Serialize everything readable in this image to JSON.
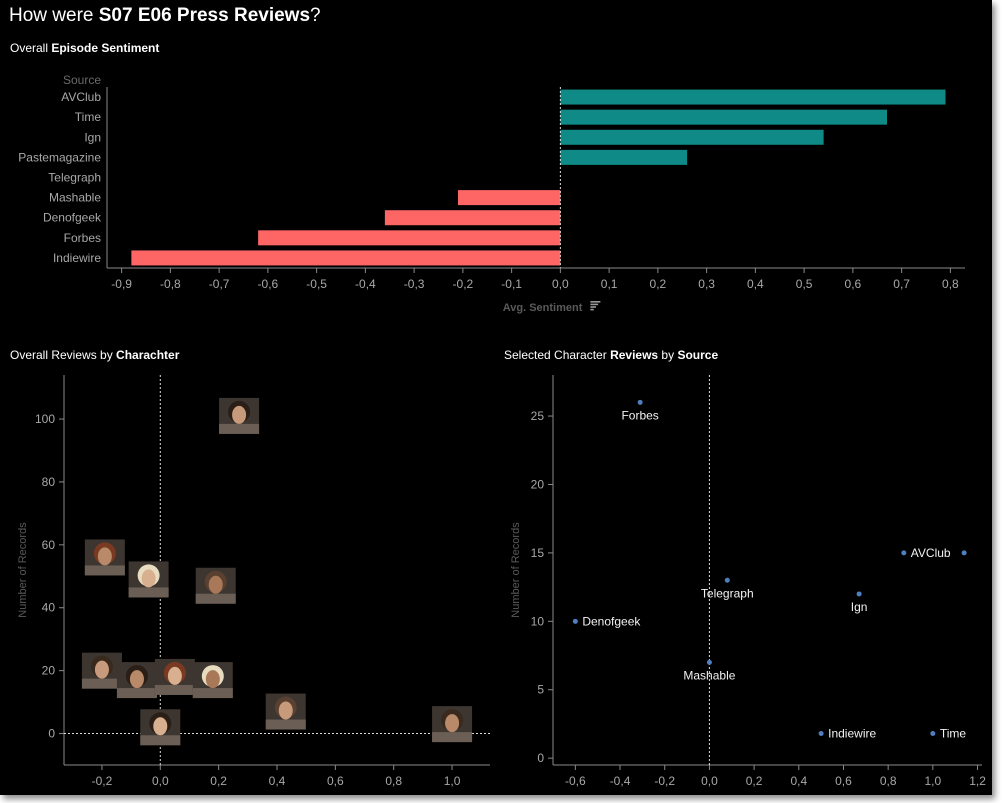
{
  "title": {
    "prefix": "How were ",
    "bold": "S07 E06 Press Reviews",
    "suffix": "?"
  },
  "colors": {
    "positive": "#0f8a87",
    "negative": "#fe6666",
    "axis": "#8a8a8a",
    "label": "#a8a8a8",
    "point": "#4f7fbf"
  },
  "chart_data": [
    {
      "type": "bar",
      "title_plain": "Overall ",
      "title_bold": "Episode Sentiment",
      "ylabel": "Source",
      "xlabel": "Avg. Sentiment",
      "categories": [
        "AVClub",
        "Time",
        "Ign",
        "Pastemagazine",
        "Telegraph",
        "Mashable",
        "Denofgeek",
        "Forbes",
        "Indiewire"
      ],
      "values": [
        0.79,
        0.67,
        0.54,
        0.26,
        0.0,
        -0.21,
        -0.36,
        -0.62,
        -0.88
      ],
      "xlim": [
        -0.93,
        0.83
      ],
      "xticks": [
        -0.9,
        -0.8,
        -0.7,
        -0.6,
        -0.5,
        -0.4,
        -0.3,
        -0.2,
        -0.1,
        0.0,
        0.1,
        0.2,
        0.3,
        0.4,
        0.5,
        0.6,
        0.7,
        0.8
      ],
      "xtick_labels": [
        "-0,9",
        "-0,8",
        "-0,7",
        "-0,6",
        "-0,5",
        "-0,4",
        "-0,3",
        "-0,2",
        "-0,1",
        "0,0",
        "0,1",
        "0,2",
        "0,3",
        "0,4",
        "0,5",
        "0,6",
        "0,7",
        "0,8"
      ]
    },
    {
      "type": "scatter",
      "title_plain": "Overall Reviews by ",
      "title_bold": "Charachter",
      "ylabel": "Number of Records",
      "xlim": [
        -0.33,
        1.13
      ],
      "ylim": [
        -10,
        114
      ],
      "xticks": [
        -0.2,
        0.0,
        0.2,
        0.4,
        0.6,
        0.8,
        1.0
      ],
      "xtick_labels": [
        "-0,2",
        "0,0",
        "0,2",
        "0,4",
        "0,6",
        "0,8",
        "1,0"
      ],
      "yticks": [
        0,
        20,
        40,
        60,
        80,
        100
      ],
      "ytick_labels": [
        "0",
        "20",
        "40",
        "60",
        "80",
        "100"
      ],
      "points": [
        {
          "x": 0.27,
          "y": 101,
          "icon": "portrait-icon"
        },
        {
          "x": -0.19,
          "y": 56,
          "icon": "portrait-icon"
        },
        {
          "x": -0.04,
          "y": 49,
          "icon": "portrait-icon"
        },
        {
          "x": 0.19,
          "y": 47,
          "icon": "portrait-icon"
        },
        {
          "x": -0.2,
          "y": 20,
          "icon": "portrait-icon"
        },
        {
          "x": -0.08,
          "y": 17,
          "icon": "portrait-icon"
        },
        {
          "x": 0.05,
          "y": 18,
          "icon": "portrait-icon"
        },
        {
          "x": 0.18,
          "y": 17,
          "icon": "portrait-icon"
        },
        {
          "x": 0.43,
          "y": 7,
          "icon": "portrait-icon"
        },
        {
          "x": 1.0,
          "y": 3,
          "icon": "portrait-icon"
        },
        {
          "x": 0.0,
          "y": 2,
          "icon": "portrait-icon"
        }
      ]
    },
    {
      "type": "scatter",
      "title_plain1": "Selected Character ",
      "title_bold1": "Reviews",
      "title_plain2": " by ",
      "title_bold2": "Source",
      "ylabel": "Number of Records",
      "xlim": [
        -0.7,
        1.22
      ],
      "ylim": [
        -0.5,
        28
      ],
      "xticks": [
        -0.6,
        -0.4,
        -0.2,
        0.0,
        0.2,
        0.4,
        0.6,
        0.8,
        1.0,
        1.2
      ],
      "xtick_labels": [
        "-0,6",
        "-0,4",
        "-0,2",
        "0,0",
        "0,2",
        "0,4",
        "0,6",
        "0,8",
        "1,0",
        "1,2"
      ],
      "yticks": [
        0,
        5,
        10,
        15,
        20,
        25
      ],
      "ytick_labels": [
        "0",
        "5",
        "10",
        "15",
        "20",
        "25"
      ],
      "points": [
        {
          "name": "Forbes",
          "x": -0.31,
          "y": 26,
          "pos": "below"
        },
        {
          "name": "Denofgeek",
          "x": -0.6,
          "y": 10,
          "pos": "right"
        },
        {
          "name": "Telegraph",
          "x": 0.08,
          "y": 13,
          "pos": "below"
        },
        {
          "name": "Mashable",
          "x": 0.0,
          "y": 7,
          "pos": "below"
        },
        {
          "name": "Ign",
          "x": 0.67,
          "y": 12,
          "pos": "below"
        },
        {
          "name": "AVClub",
          "x": 0.87,
          "y": 15,
          "pos": "right"
        },
        {
          "name": "",
          "x": 1.14,
          "y": 15,
          "pos": "none"
        },
        {
          "name": "Indiewire",
          "x": 0.5,
          "y": 1.8,
          "pos": "right"
        },
        {
          "name": "Time",
          "x": 1.0,
          "y": 1.8,
          "pos": "right"
        }
      ]
    }
  ]
}
